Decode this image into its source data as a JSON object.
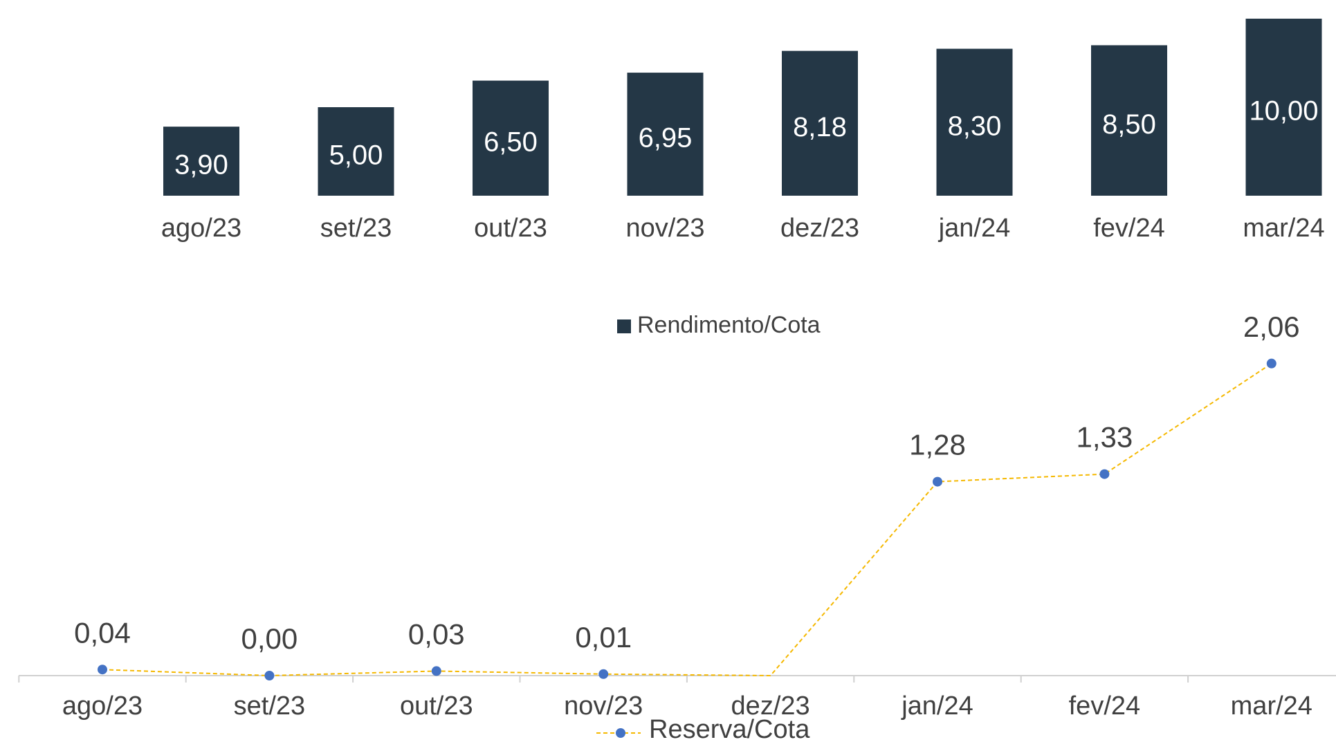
{
  "chart_data": [
    {
      "type": "bar",
      "categories": [
        "ago/23",
        "set/23",
        "out/23",
        "nov/23",
        "dez/23",
        "jan/24",
        "fev/24",
        "mar/24"
      ],
      "series": [
        {
          "name": "Rendimento/Cota",
          "color": "#243746",
          "values": [
            3.9,
            5.0,
            6.5,
            6.95,
            8.18,
            8.3,
            8.5,
            10.0
          ],
          "value_labels": [
            "3,90",
            "5,00",
            "6,50",
            "6,95",
            "8,18",
            "8,30",
            "8,50",
            "10,00"
          ]
        }
      ],
      "ylim": [
        0,
        10
      ],
      "legend": "bottom"
    },
    {
      "type": "line",
      "categories": [
        "ago/23",
        "set/23",
        "out/23",
        "nov/23",
        "dez/23",
        "jan/24",
        "fev/24",
        "mar/24"
      ],
      "series": [
        {
          "name": "Reserva/Cota",
          "color": "#f5b800",
          "marker_color": "#4472c4",
          "values": [
            0.04,
            0.0,
            0.03,
            0.01,
            0.0,
            1.28,
            1.33,
            2.06
          ],
          "value_labels": [
            "0,04",
            "0,00",
            "0,03",
            "0,01",
            null,
            "1,28",
            "1,33",
            "2,06"
          ]
        }
      ],
      "ylim": [
        0,
        2.2
      ],
      "legend": "bottom"
    }
  ]
}
